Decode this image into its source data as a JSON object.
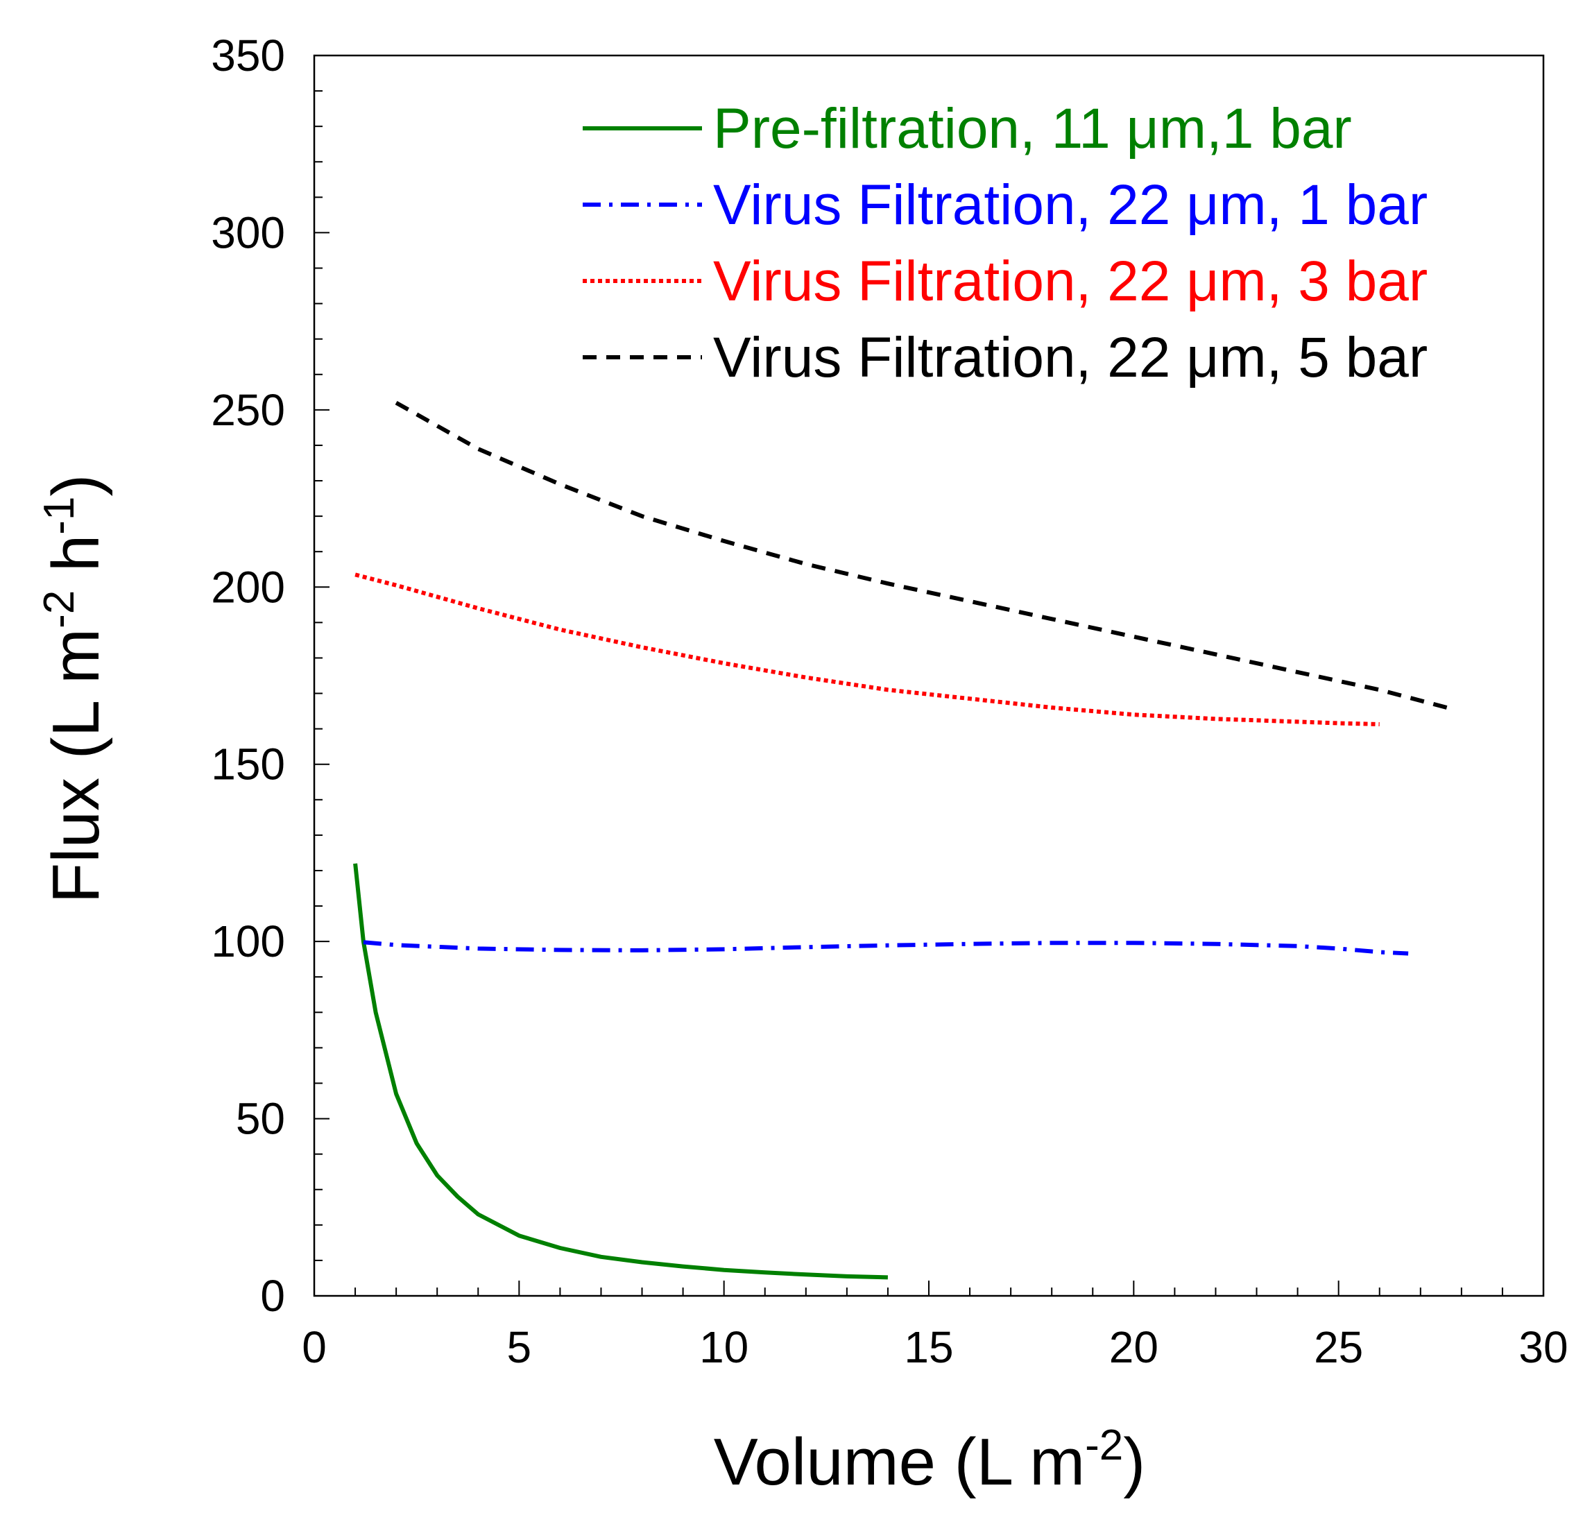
{
  "chart_data": {
    "type": "line",
    "xlabel": "Volume (L m",
    "xlabel_sup": "-2",
    "xlabel_end": ")",
    "ylabel": "Flux (L m",
    "ylabel_sup1": "-2",
    "ylabel_mid": " h",
    "ylabel_sup2": "-1",
    "ylabel_end": ")",
    "xlim": [
      0,
      30
    ],
    "ylim": [
      0,
      350
    ],
    "xticks": [
      0,
      5,
      10,
      15,
      20,
      25,
      30
    ],
    "yticks": [
      0,
      50,
      100,
      150,
      200,
      250,
      300,
      350
    ],
    "xtick_labels": [
      "0",
      "5",
      "10",
      "15",
      "20",
      "25",
      "30"
    ],
    "ytick_labels": [
      "0",
      "50",
      "100",
      "150",
      "200",
      "250",
      "300",
      "350"
    ],
    "minor_x_step": 1,
    "minor_y_step": 10,
    "grid": false,
    "legend_position": "top-right",
    "series": [
      {
        "name": "Pre-filtration, 11 μm,1 bar",
        "color": "#008000",
        "style": "solid",
        "x": [
          1.0,
          1.2,
          1.5,
          2.0,
          2.5,
          3.0,
          3.5,
          4.0,
          5.0,
          6.0,
          7.0,
          8.0,
          9.0,
          10.0,
          11.0,
          12.0,
          13.0,
          14.0
        ],
        "y": [
          122,
          100,
          80,
          57,
          43,
          34,
          28,
          23,
          17,
          13.5,
          11,
          9.5,
          8.3,
          7.3,
          6.6,
          6.0,
          5.5,
          5.2
        ]
      },
      {
        "name": "Virus Filtration, 22 μm, 1 bar",
        "color": "#0000ff",
        "style": "dashdot",
        "x": [
          1.2,
          2,
          4,
          6,
          8,
          10,
          12,
          14,
          16,
          18,
          20,
          22,
          24,
          25,
          26,
          26.7
        ],
        "y": [
          99.8,
          99,
          98,
          97.6,
          97.5,
          97.8,
          98.4,
          98.9,
          99.3,
          99.6,
          99.6,
          99.3,
          98.7,
          98,
          97,
          96.6
        ]
      },
      {
        "name": "Virus Filtration, 22 μm, 3 bar",
        "color": "#ff0000",
        "style": "dotted",
        "x": [
          1,
          2,
          4,
          6,
          8,
          10,
          12,
          14,
          16,
          18,
          20,
          22,
          24,
          25,
          26
        ],
        "y": [
          203.5,
          200.5,
          194,
          188,
          183,
          178.5,
          174.5,
          171,
          168.5,
          166,
          164,
          162.8,
          162,
          161.6,
          161.3
        ]
      },
      {
        "name": "Virus Filtration, 22 μm, 5 bar",
        "color": "#000000",
        "style": "dashed",
        "x": [
          2,
          4,
          6,
          8,
          10,
          12,
          14,
          16,
          18,
          20,
          22,
          24,
          26,
          27.8
        ],
        "y": [
          252,
          239,
          229,
          220,
          213,
          206.5,
          201,
          196,
          191,
          186,
          181,
          176,
          171,
          165.5
        ]
      }
    ]
  }
}
